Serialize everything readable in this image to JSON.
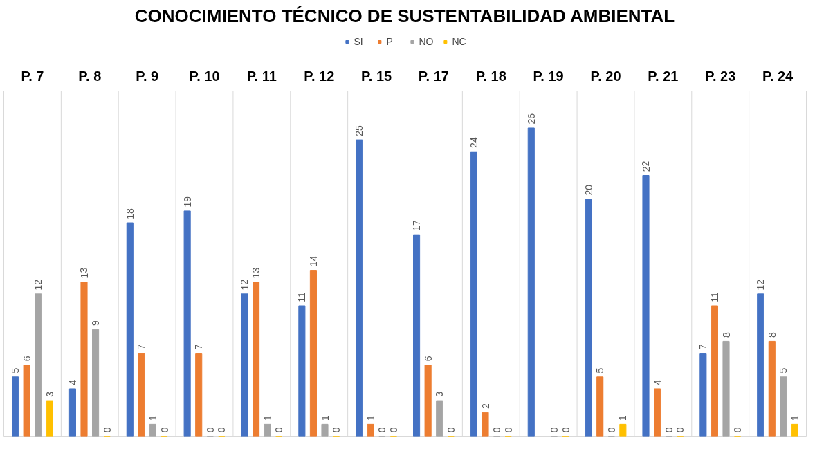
{
  "chart_data": {
    "type": "bar",
    "title": "CONOCIMIENTO TÉCNICO DE SUSTENTABILIDAD AMBIENTAL",
    "categories": [
      "P. 7",
      "P. 8",
      "P. 9",
      "P. 10",
      "P. 11",
      "P. 12",
      "P. 15",
      "P. 17",
      "P. 18",
      "P. 19",
      "P. 20",
      "P. 21",
      "P. 23",
      "P. 24"
    ],
    "series": [
      {
        "name": "SI",
        "color": "#4472c4",
        "values": [
          5,
          4,
          18,
          19,
          12,
          11,
          25,
          17,
          24,
          26,
          20,
          22,
          7,
          12
        ]
      },
      {
        "name": "P",
        "color": "#ed7d31",
        "values": [
          6,
          13,
          7,
          7,
          13,
          14,
          1,
          6,
          2,
          null,
          5,
          4,
          11,
          8
        ]
      },
      {
        "name": "NO",
        "color": "#a5a5a5",
        "values": [
          12,
          9,
          1,
          0,
          1,
          1,
          0,
          3,
          0,
          0,
          0,
          0,
          8,
          5
        ]
      },
      {
        "name": "NC",
        "color": "#ffc000",
        "values": [
          3,
          0,
          0,
          0,
          0,
          0,
          0,
          0,
          0,
          0,
          1,
          0,
          0,
          1
        ]
      }
    ],
    "data_labels": true,
    "legend": "top",
    "grid": "x"
  }
}
